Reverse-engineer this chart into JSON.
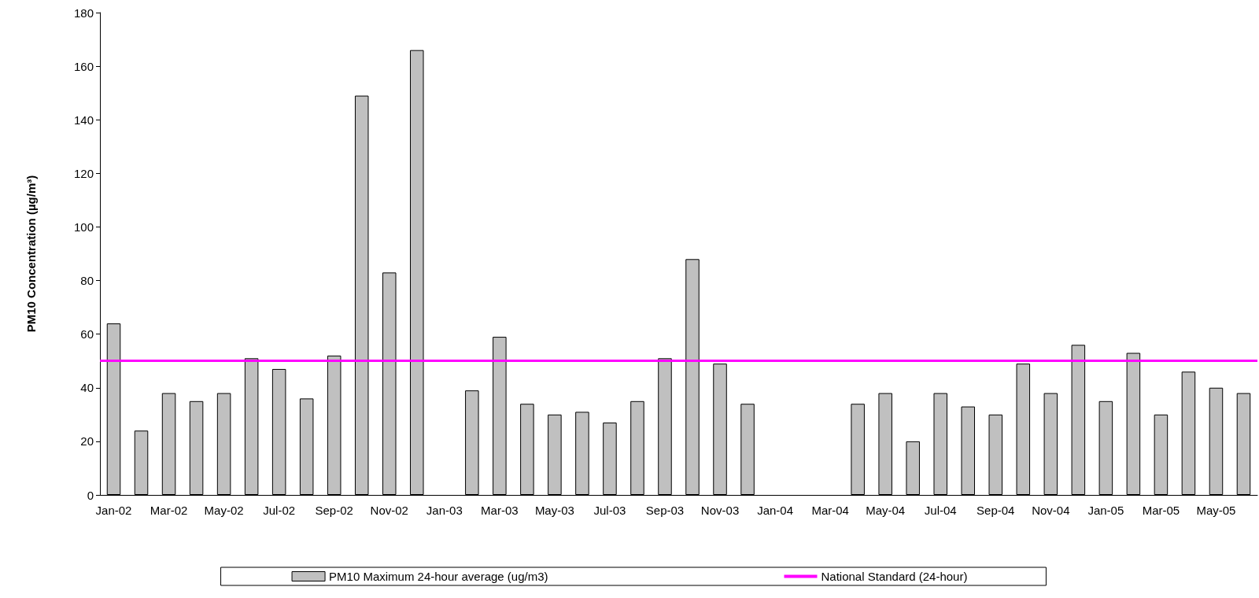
{
  "chart_data": {
    "type": "bar",
    "ylabel": "PM10 Concentration (µg/m³)",
    "categories": [
      "Jan-02",
      null,
      "Mar-02",
      null,
      "May-02",
      null,
      "Jul-02",
      null,
      "Sep-02",
      null,
      "Nov-02",
      null,
      "Jan-03",
      null,
      "Mar-03",
      null,
      "May-03",
      null,
      "Jul-03",
      null,
      "Sep-03",
      null,
      "Nov-03",
      null,
      "Jan-04",
      null,
      "Mar-04",
      null,
      "May-04",
      null,
      "Jul-04",
      null,
      "Sep-04",
      null,
      "Nov-04",
      null,
      "Jan-05",
      null,
      "Mar-05",
      null,
      "May-05",
      null
    ],
    "series": [
      {
        "name": "PM10 Maximum 24-hour average (ug/m3)",
        "color": "#c0c0c0",
        "values": [
          64,
          24,
          38,
          35,
          38,
          51,
          47,
          36,
          52,
          149,
          83,
          166,
          null,
          39,
          59,
          34,
          30,
          31,
          27,
          35,
          51,
          88,
          49,
          34,
          null,
          null,
          null,
          34,
          38,
          20,
          38,
          33,
          30,
          49,
          38,
          56,
          35,
          53,
          30,
          46,
          40,
          38
        ]
      }
    ],
    "ref_lines": [
      {
        "axis": "y",
        "value": 50,
        "label": "National Standard (24-hour)",
        "color": "#ff00ff"
      }
    ],
    "ylim": [
      0,
      180
    ],
    "yticks": [
      0,
      20,
      40,
      60,
      80,
      100,
      120,
      140,
      160,
      180
    ],
    "grid": false,
    "legend": "bottom"
  }
}
